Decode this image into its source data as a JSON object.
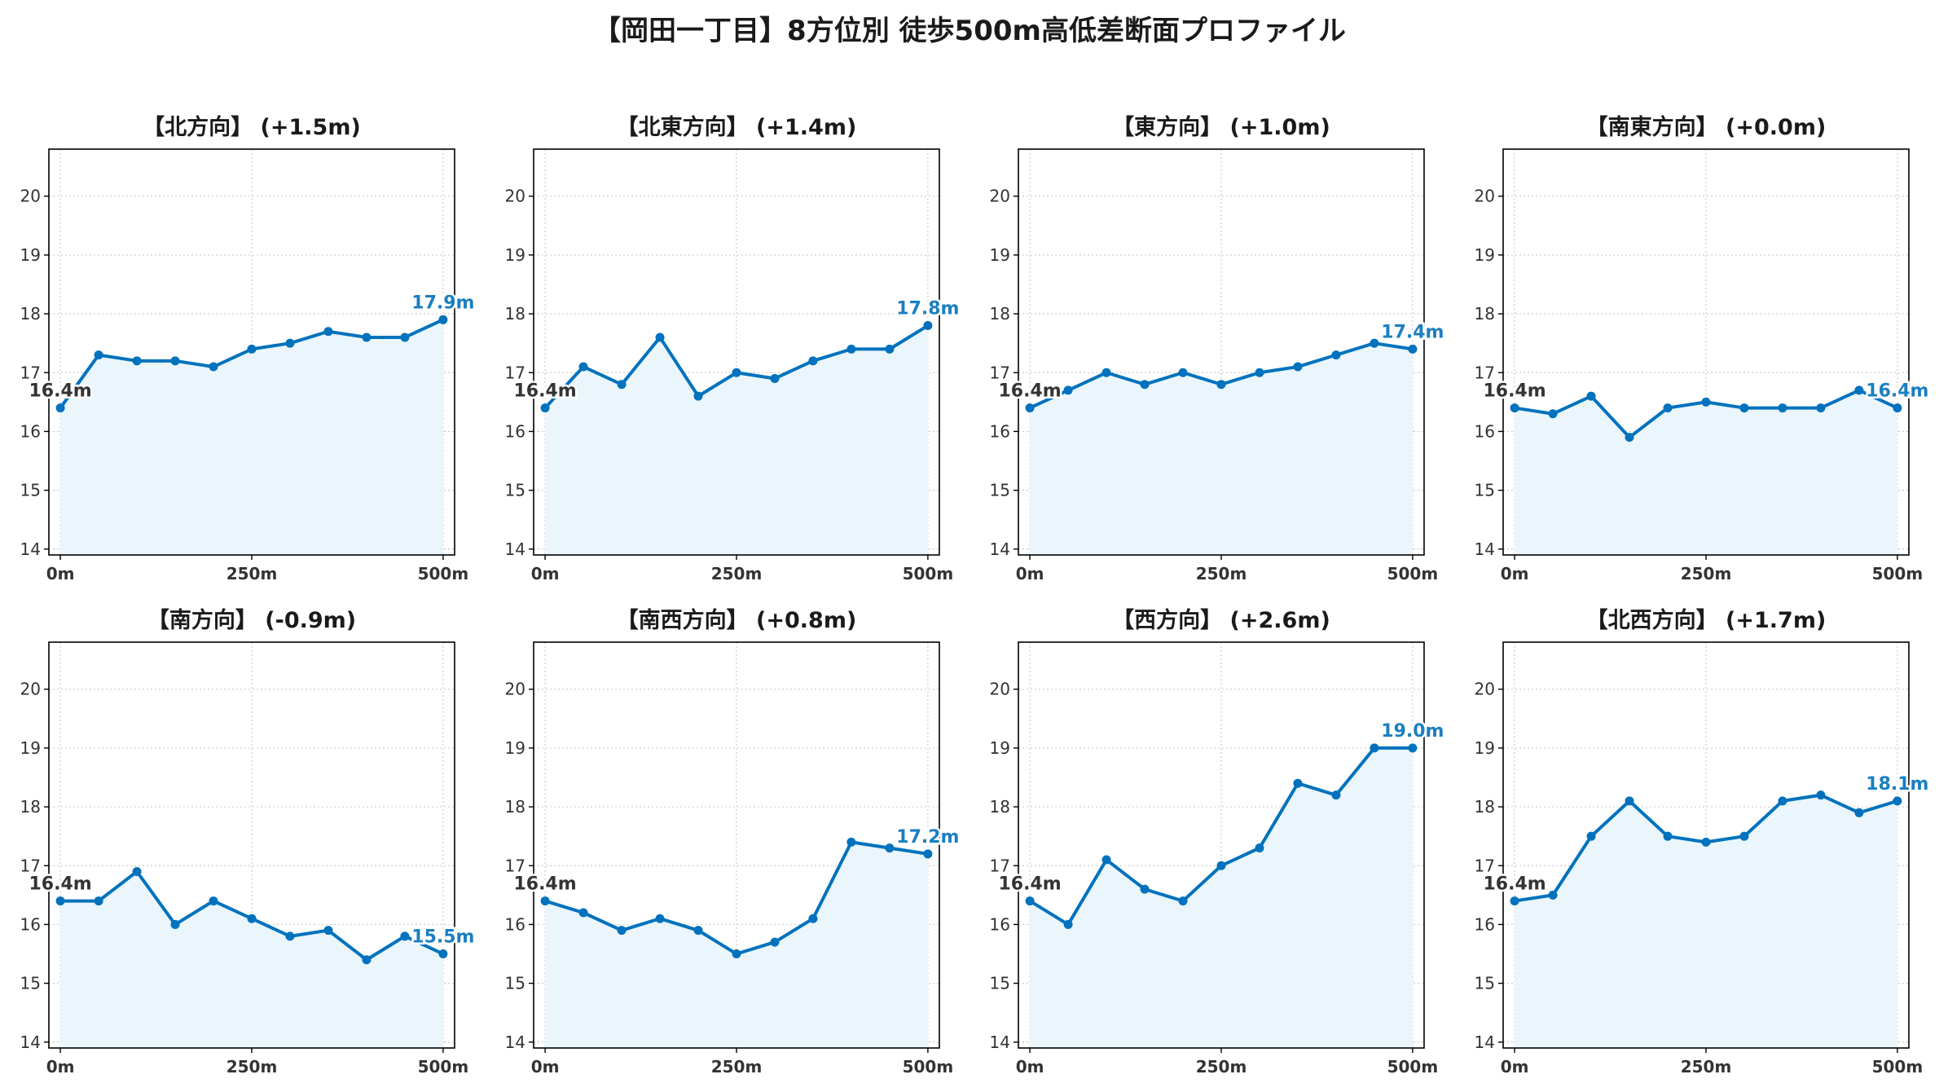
{
  "title": "【岡田一丁目】8方位別 徒歩500m高低差断面プロファイル",
  "colors": {
    "line": "#0072bd",
    "fill": "#eaf6fb",
    "start_label": "#333333",
    "end_label": "#1a7fc1",
    "grid": "#cccccc"
  },
  "chart_data": [
    {
      "type": "area",
      "title": "【北方向】 (+1.5m)",
      "x": [
        0,
        50,
        100,
        150,
        200,
        250,
        300,
        350,
        400,
        450,
        500
      ],
      "y": [
        16.4,
        17.3,
        17.2,
        17.2,
        17.1,
        17.4,
        17.5,
        17.7,
        17.6,
        17.6,
        17.9
      ],
      "start_label": "16.4m",
      "end_label": "17.9m"
    },
    {
      "type": "area",
      "title": "【北東方向】 (+1.4m)",
      "x": [
        0,
        50,
        100,
        150,
        200,
        250,
        300,
        350,
        400,
        450,
        500
      ],
      "y": [
        16.4,
        17.1,
        16.8,
        17.6,
        16.6,
        17.0,
        16.9,
        17.2,
        17.4,
        17.4,
        17.8
      ],
      "start_label": "16.4m",
      "end_label": "17.8m"
    },
    {
      "type": "area",
      "title": "【東方向】 (+1.0m)",
      "x": [
        0,
        50,
        100,
        150,
        200,
        250,
        300,
        350,
        400,
        450,
        500
      ],
      "y": [
        16.4,
        16.7,
        17.0,
        16.8,
        17.0,
        16.8,
        17.0,
        17.1,
        17.3,
        17.5,
        17.4
      ],
      "start_label": "16.4m",
      "end_label": "17.4m"
    },
    {
      "type": "area",
      "title": "【南東方向】 (+0.0m)",
      "x": [
        0,
        50,
        100,
        150,
        200,
        250,
        300,
        350,
        400,
        450,
        500
      ],
      "y": [
        16.4,
        16.3,
        16.6,
        15.9,
        16.4,
        16.5,
        16.4,
        16.4,
        16.4,
        16.7,
        16.4
      ],
      "start_label": "16.4m",
      "end_label": "16.4m"
    },
    {
      "type": "area",
      "title": "【南方向】 (-0.9m)",
      "x": [
        0,
        50,
        100,
        150,
        200,
        250,
        300,
        350,
        400,
        450,
        500
      ],
      "y": [
        16.4,
        16.4,
        16.9,
        16.0,
        16.4,
        16.1,
        15.8,
        15.9,
        15.4,
        15.8,
        15.5
      ],
      "start_label": "16.4m",
      "end_label": "15.5m"
    },
    {
      "type": "area",
      "title": "【南西方向】 (+0.8m)",
      "x": [
        0,
        50,
        100,
        150,
        200,
        250,
        300,
        350,
        400,
        450,
        500
      ],
      "y": [
        16.4,
        16.2,
        15.9,
        16.1,
        15.9,
        15.5,
        15.7,
        16.1,
        17.4,
        17.3,
        17.2
      ],
      "start_label": "16.4m",
      "end_label": "17.2m"
    },
    {
      "type": "area",
      "title": "【西方向】 (+2.6m)",
      "x": [
        0,
        50,
        100,
        150,
        200,
        250,
        300,
        350,
        400,
        450,
        500
      ],
      "y": [
        16.4,
        16.0,
        17.1,
        16.6,
        16.4,
        17.0,
        17.3,
        18.4,
        18.2,
        19.0,
        19.0
      ],
      "start_label": "16.4m",
      "end_label": "19.0m"
    },
    {
      "type": "area",
      "title": "【北西方向】 (+1.7m)",
      "x": [
        0,
        50,
        100,
        150,
        200,
        250,
        300,
        350,
        400,
        450,
        500
      ],
      "y": [
        16.4,
        16.5,
        17.5,
        18.1,
        17.5,
        17.4,
        17.5,
        18.1,
        18.2,
        17.9,
        18.1
      ],
      "start_label": "16.4m",
      "end_label": "18.1m"
    }
  ],
  "axes": {
    "xlim": [
      -15,
      515
    ],
    "ylim": [
      13.9,
      20.8
    ],
    "xticks": [
      0,
      250,
      500
    ],
    "xtick_labels": [
      "0m",
      "250m",
      "500m"
    ],
    "yticks": [
      14,
      15,
      16,
      17,
      18,
      19,
      20
    ],
    "ytick_labels": [
      "14",
      "15",
      "16",
      "17",
      "18",
      "19",
      "20"
    ],
    "grid": true,
    "grid_style": "dotted"
  }
}
